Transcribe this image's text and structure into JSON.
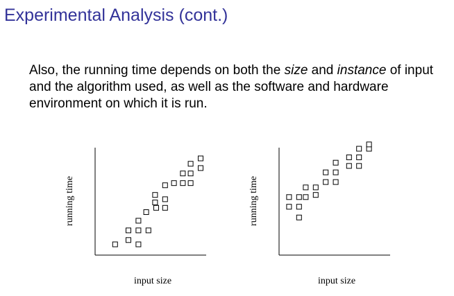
{
  "header": {
    "title": "Experimental Analysis (cont.)"
  },
  "body": {
    "paragraph": [
      "Also, the running time depends on both the ",
      "size",
      " and ",
      "instance",
      " of input and the algorithm used, as well as the software and hardware environment on which it is run."
    ]
  },
  "chart_data": [
    {
      "type": "scatter",
      "xlabel": "input size",
      "ylabel": "running time",
      "xlim": [
        0,
        100
      ],
      "ylim": [
        0,
        100
      ],
      "x": [
        18,
        30,
        39,
        30,
        39,
        48,
        39,
        46,
        55,
        63,
        54,
        63,
        54,
        63,
        71,
        79,
        86,
        79,
        86,
        95,
        86,
        95
      ],
      "y": [
        10,
        14,
        10,
        23,
        23,
        23,
        32,
        40,
        44,
        44,
        49,
        52,
        56,
        65,
        67,
        67,
        67,
        76,
        76,
        81,
        85,
        90
      ]
    },
    {
      "type": "scatter",
      "xlabel": "input size",
      "ylabel": "running time",
      "xlim": [
        0,
        100
      ],
      "ylim": [
        0,
        100
      ],
      "x": [
        18,
        9,
        18,
        9,
        18,
        24,
        24,
        33,
        33,
        42,
        51,
        42,
        51,
        51,
        63,
        72,
        63,
        72,
        72,
        81,
        81
      ],
      "y": [
        35,
        45,
        45,
        54,
        54,
        54,
        63,
        63,
        56,
        68,
        68,
        77,
        77,
        86,
        83,
        83,
        91,
        91,
        99,
        99,
        103
      ]
    }
  ]
}
